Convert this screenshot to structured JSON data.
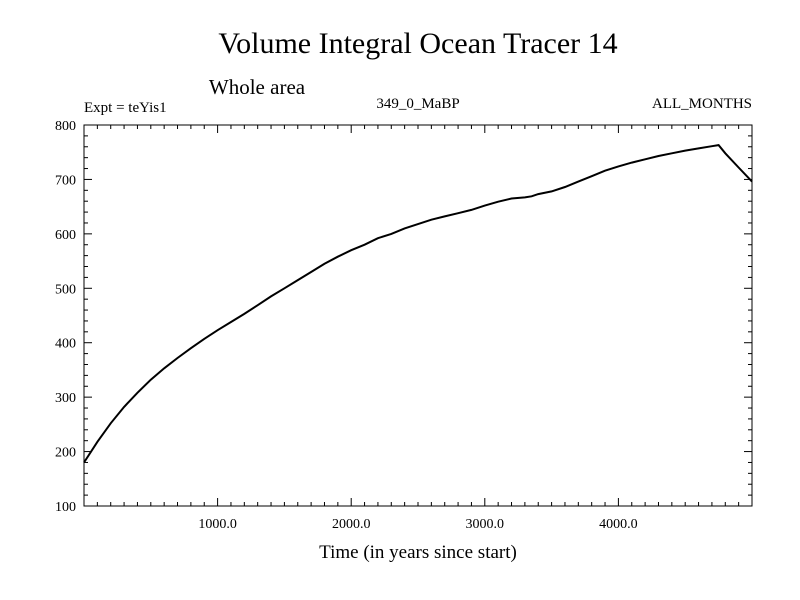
{
  "chart_data": {
    "type": "line",
    "title": "Volume Integral Ocean Tracer 14",
    "subtitle": "Whole area",
    "annotations": {
      "left": "Expt = teYis1",
      "center": "349_0_MaBP",
      "right": "ALL_MONTHS"
    },
    "xlabel": "Time (in years since start)",
    "ylabel": "",
    "xlim": [
      0,
      5000
    ],
    "ylim": [
      100,
      800
    ],
    "x_ticks": [
      {
        "value": 1000,
        "label": "1000.0"
      },
      {
        "value": 2000,
        "label": "2000.0"
      },
      {
        "value": 3000,
        "label": "3000.0"
      },
      {
        "value": 4000,
        "label": "4000.0"
      }
    ],
    "y_ticks": [
      {
        "value": 100,
        "label": "100"
      },
      {
        "value": 200,
        "label": "200"
      },
      {
        "value": 300,
        "label": "300"
      },
      {
        "value": 400,
        "label": "400"
      },
      {
        "value": 500,
        "label": "500"
      },
      {
        "value": 600,
        "label": "600"
      },
      {
        "value": 700,
        "label": "700"
      },
      {
        "value": 800,
        "label": "800"
      }
    ],
    "grid": false,
    "line_color": "#000000",
    "series": [
      {
        "x": [
          0,
          100,
          200,
          300,
          400,
          500,
          600,
          700,
          800,
          900,
          1000,
          1100,
          1200,
          1300,
          1400,
          1500,
          1600,
          1700,
          1800,
          1900,
          2000,
          2100,
          2200,
          2300,
          2400,
          2500,
          2600,
          2700,
          2800,
          2900,
          3000,
          3100,
          3200,
          3300,
          3350,
          3400,
          3500,
          3600,
          3700,
          3800,
          3900,
          4000,
          4100,
          4200,
          4300,
          4400,
          4500,
          4600,
          4700,
          4750,
          4800,
          4900,
          5000
        ],
        "y": [
          180,
          218,
          252,
          282,
          308,
          332,
          353,
          372,
          390,
          407,
          423,
          438,
          453,
          469,
          485,
          500,
          515,
          530,
          545,
          558,
          570,
          580,
          592,
          600,
          610,
          618,
          626,
          632,
          638,
          644,
          652,
          659,
          665,
          667,
          669,
          673,
          678,
          686,
          696,
          706,
          716,
          724,
          731,
          737,
          743,
          748,
          753,
          757,
          761,
          763,
          748,
          722,
          696
        ]
      }
    ]
  }
}
